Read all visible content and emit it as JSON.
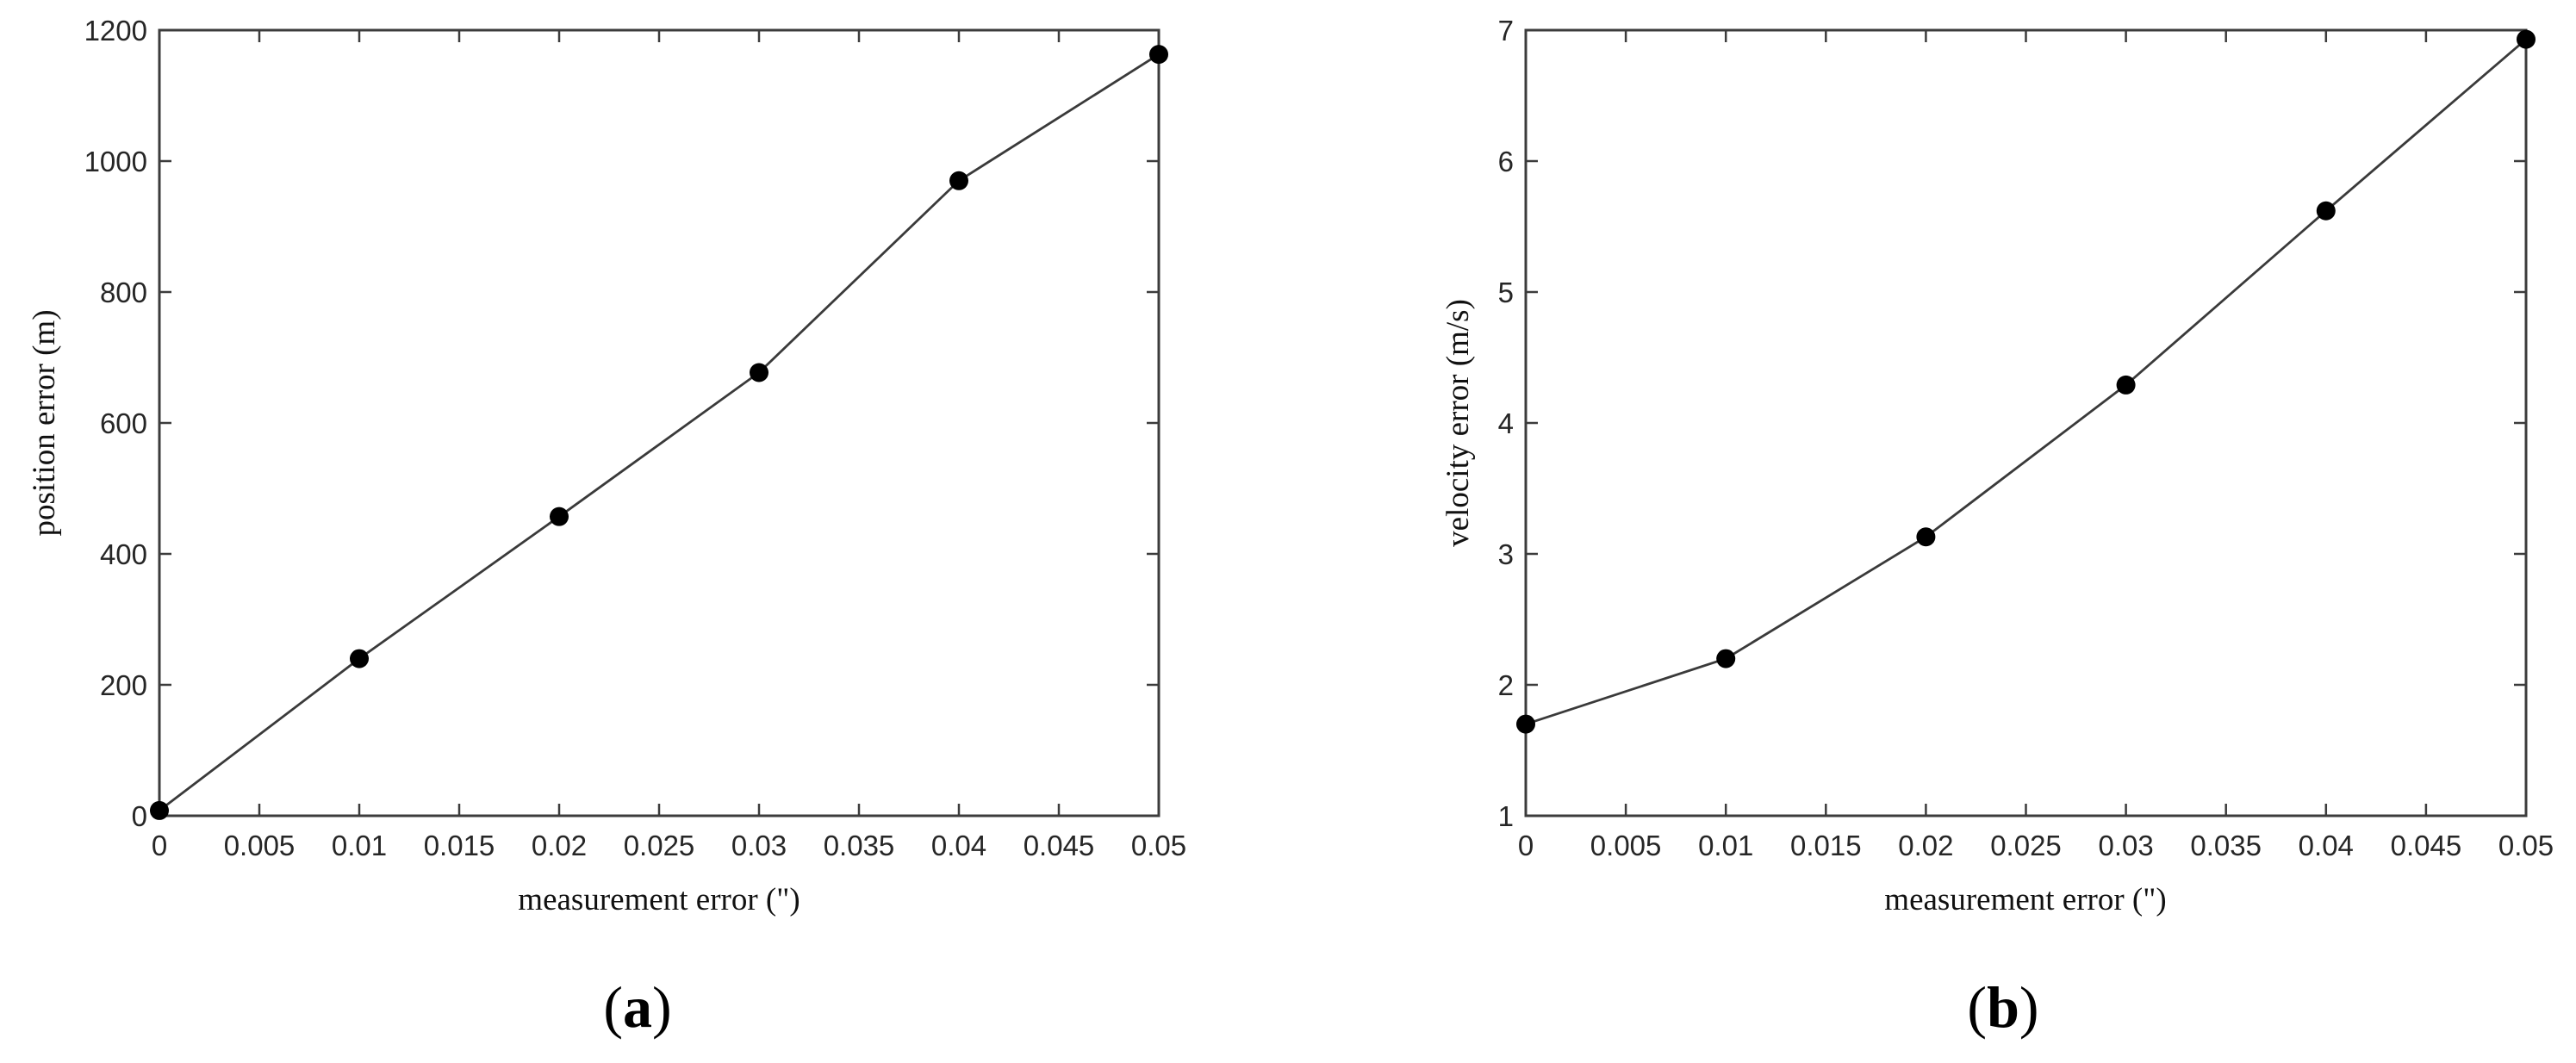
{
  "chart_data": [
    {
      "type": "line",
      "panel_label": "a",
      "xlabel": "measurement error (\")",
      "ylabel": "position error (m)",
      "xlim": [
        0,
        0.05
      ],
      "ylim": [
        0,
        1200
      ],
      "xticks": [
        0,
        0.005,
        0.01,
        0.015,
        0.02,
        0.025,
        0.03,
        0.035,
        0.04,
        0.045,
        0.05
      ],
      "xtick_labels": [
        "0",
        "0.005",
        "0.01",
        "0.015",
        "0.02",
        "0.025",
        "0.03",
        "0.035",
        "0.04",
        "0.045",
        "0.05"
      ],
      "yticks": [
        0,
        200,
        400,
        600,
        800,
        1000,
        1200
      ],
      "ytick_labels": [
        "0",
        "200",
        "400",
        "600",
        "800",
        "1000",
        "1200"
      ],
      "grid": false,
      "series": [
        {
          "x": [
            0,
            0.01,
            0.02,
            0.03,
            0.04,
            0.05
          ],
          "y": [
            8,
            240,
            457,
            677,
            970,
            1163
          ],
          "marker": "filled-circle",
          "color": "#000000"
        }
      ]
    },
    {
      "type": "line",
      "panel_label": "b",
      "xlabel": "measurement error (\")",
      "ylabel": "velocity error (m/s)",
      "xlim": [
        0,
        0.05
      ],
      "ylim": [
        1,
        7
      ],
      "xticks": [
        0,
        0.005,
        0.01,
        0.015,
        0.02,
        0.025,
        0.03,
        0.035,
        0.04,
        0.045,
        0.05
      ],
      "xtick_labels": [
        "0",
        "0.005",
        "0.01",
        "0.015",
        "0.02",
        "0.025",
        "0.03",
        "0.035",
        "0.04",
        "0.045",
        "0.05"
      ],
      "yticks": [
        1,
        2,
        3,
        4,
        5,
        6,
        7
      ],
      "ytick_labels": [
        "1",
        "2",
        "3",
        "4",
        "5",
        "6",
        "7"
      ],
      "grid": false,
      "series": [
        {
          "x": [
            0,
            0.01,
            0.02,
            0.03,
            0.04,
            0.05
          ],
          "y": [
            1.7,
            2.2,
            3.13,
            4.29,
            5.62,
            6.93
          ],
          "marker": "filled-circle",
          "color": "#000000"
        }
      ]
    }
  ]
}
